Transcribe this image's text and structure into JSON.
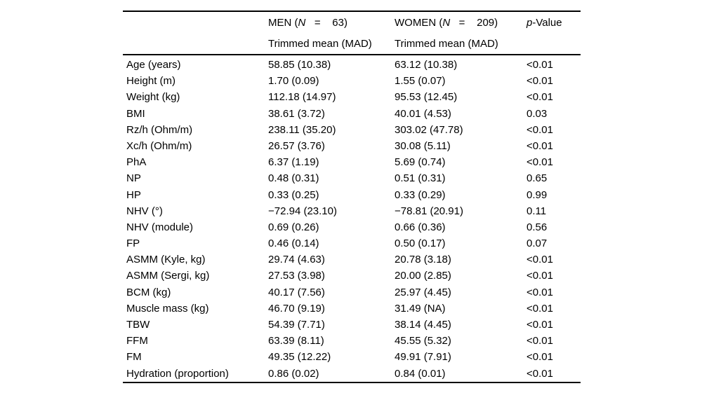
{
  "table": {
    "header": {
      "empty": "",
      "men": {
        "prefix": "MEN (",
        "n": "N",
        "eq_suffix": "   =    63)",
        "subtitle": "Trimmed mean (MAD)"
      },
      "women": {
        "prefix": "WOMEN (",
        "n": "N",
        "eq_suffix": "   =    209)",
        "subtitle": "Trimmed mean (MAD)"
      },
      "pvalue": {
        "italic": "p",
        "rest": "-Value"
      }
    },
    "rows": [
      {
        "label": "Age (years)",
        "men": "58.85 (10.38)",
        "women": "63.12 (10.38)",
        "p": "<0.01"
      },
      {
        "label": "Height (m)",
        "men": "1.70 (0.09)",
        "women": "1.55 (0.07)",
        "p": "<0.01"
      },
      {
        "label": "Weight (kg)",
        "men": "112.18 (14.97)",
        "women": "95.53 (12.45)",
        "p": "<0.01"
      },
      {
        "label": "BMI",
        "men": "38.61 (3.72)",
        "women": "40.01 (4.53)",
        "p": "0.03"
      },
      {
        "label": "Rz/h (Ohm/m)",
        "men": "238.11 (35.20)",
        "women": "303.02 (47.78)",
        "p": "<0.01"
      },
      {
        "label": "Xc/h (Ohm/m)",
        "men": "26.57 (3.76)",
        "women": "30.08 (5.11)",
        "p": "<0.01"
      },
      {
        "label": "PhA",
        "men": "6.37 (1.19)",
        "women": "5.69 (0.74)",
        "p": "<0.01"
      },
      {
        "label": "NP",
        "men": "0.48 (0.31)",
        "women": "0.51 (0.31)",
        "p": "0.65"
      },
      {
        "label": "HP",
        "men": "0.33 (0.25)",
        "women": "0.33 (0.29)",
        "p": "0.99"
      },
      {
        "label": "NHV (°)",
        "men": "−72.94 (23.10)",
        "women": "−78.81 (20.91)",
        "p": "0.11"
      },
      {
        "label": "NHV (module)",
        "men": "0.69 (0.26)",
        "women": "0.66 (0.36)",
        "p": "0.56"
      },
      {
        "label": "FP",
        "men": "0.46 (0.14)",
        "women": "0.50 (0.17)",
        "p": "0.07"
      },
      {
        "label": "ASMM (Kyle, kg)",
        "men": "29.74 (4.63)",
        "women": "20.78 (3.18)",
        "p": "<0.01"
      },
      {
        "label": "ASMM (Sergi, kg)",
        "men": "27.53 (3.98)",
        "women": "20.00 (2.85)",
        "p": "<0.01"
      },
      {
        "label": "BCM (kg)",
        "men": "40.17 (7.56)",
        "women": "25.97 (4.45)",
        "p": "<0.01"
      },
      {
        "label": "Muscle mass (kg)",
        "men": "46.70 (9.19)",
        "women": "31.49 (NA)",
        "p": "<0.01"
      },
      {
        "label": "TBW",
        "men": "54.39 (7.71)",
        "women": "38.14 (4.45)",
        "p": "<0.01"
      },
      {
        "label": "FFM",
        "men": "63.39 (8.11)",
        "women": "45.55 (5.32)",
        "p": "<0.01"
      },
      {
        "label": "FM",
        "men": "49.35 (12.22)",
        "women": "49.91 (7.91)",
        "p": "<0.01"
      },
      {
        "label": "Hydration (proportion)",
        "men": "0.86 (0.02)",
        "women": "0.84 (0.01)",
        "p": "<0.01"
      }
    ]
  }
}
